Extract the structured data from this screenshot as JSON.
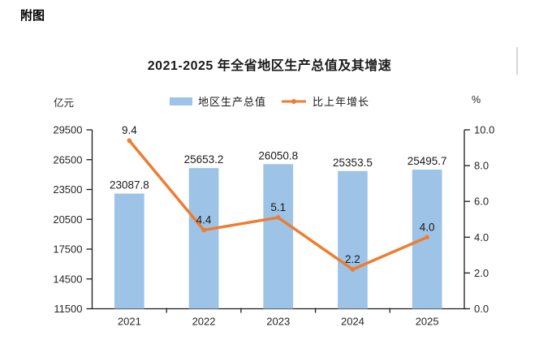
{
  "figure_label": "附图",
  "chart_data": {
    "type": "combo",
    "title": "2021-2025 年全省地区生产总值及其增速",
    "categories": [
      "2021",
      "2022",
      "2023",
      "2024",
      "2025"
    ],
    "series": [
      {
        "name": "地区生产总值",
        "kind": "bar",
        "axis": "left",
        "color": "#9DC3E6",
        "values": [
          23087.8,
          25653.2,
          26050.8,
          25353.5,
          25495.7
        ],
        "labels": [
          "23087.8",
          "25653.2",
          "26050.8",
          "25353.5",
          "25495.7"
        ]
      },
      {
        "name": "比上年增长",
        "kind": "line",
        "axis": "right",
        "color": "#ED7D31",
        "values": [
          9.4,
          4.4,
          5.1,
          2.2,
          4.0
        ],
        "labels": [
          "9.4",
          "4.4",
          "5.1",
          "2.2",
          "4.0"
        ]
      }
    ],
    "left_axis": {
      "unit": "亿元",
      "min": 11500,
      "max": 29500,
      "tick_step": 3000,
      "ticks": [
        "29500",
        "26500",
        "23500",
        "20500",
        "17500",
        "14500",
        "11500"
      ]
    },
    "right_axis": {
      "unit": "%",
      "min": 0.0,
      "max": 10.0,
      "tick_step": 2.0,
      "ticks": [
        "10.0",
        "8.0",
        "6.0",
        "4.0",
        "2.0",
        "0.0"
      ]
    },
    "legend": {
      "position": "top",
      "bar_label": "地区生产总值",
      "line_label": "比上年增长"
    },
    "grid": false,
    "axis_color": "#1a1a1a"
  }
}
